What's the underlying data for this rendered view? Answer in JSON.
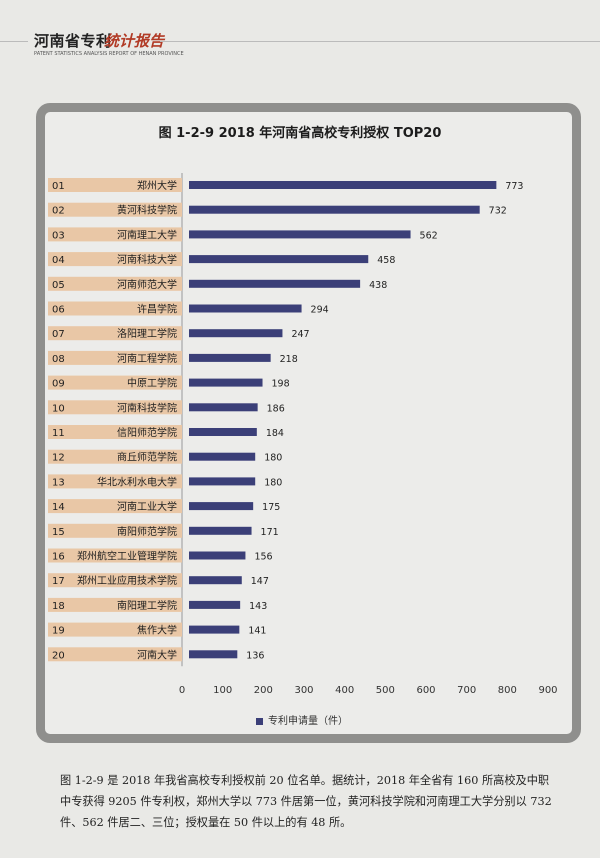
{
  "header": {
    "title": "河南省专利",
    "script": "统计报告",
    "subtitle": "PATENT STATISTICS ANALYSIS REPORT OF HENAN PROVINCE"
  },
  "chart_data": {
    "type": "bar",
    "orientation": "horizontal",
    "title": "图 1-2-9  2018 年河南省高校专利授权 TOP20",
    "ranks": [
      "01",
      "02",
      "03",
      "04",
      "05",
      "06",
      "07",
      "08",
      "09",
      "10",
      "11",
      "12",
      "13",
      "14",
      "15",
      "16",
      "17",
      "18",
      "19",
      "20"
    ],
    "categories": [
      "郑州大学",
      "黄河科技学院",
      "河南理工大学",
      "河南科技大学",
      "河南师范大学",
      "许昌学院",
      "洛阳理工学院",
      "河南工程学院",
      "中原工学院",
      "河南科技学院",
      "信阳师范学院",
      "商丘师范学院",
      "华北水利水电大学",
      "河南工业大学",
      "南阳师范学院",
      "郑州航空工业管理学院",
      "郑州工业应用技术学院",
      "南阳理工学院",
      "焦作大学",
      "河南大学"
    ],
    "values": [
      773,
      732,
      562,
      458,
      438,
      294,
      247,
      218,
      198,
      186,
      184,
      180,
      180,
      175,
      171,
      156,
      147,
      143,
      141,
      136
    ],
    "series_name": "专利申请量（件）",
    "xlim": [
      0,
      900
    ],
    "xticks": [
      0,
      100,
      200,
      300,
      400,
      500,
      600,
      700,
      800,
      900
    ],
    "grid": false,
    "legend_position": "bottom",
    "colors": {
      "bar": "#3b3f78",
      "label_band": "#e9c7a6"
    }
  },
  "caption": "图 1-2-9 是 2018 年我省高校专利授权前 20 位名单。据统计，2018 年全省有 160 所高校及中职中专获得 9205 件专利权，郑州大学以 773 件居第一位，黄河科技学院和河南理工大学分别以 732 件、562 件居二、三位；授权量在 50 件以上的有 48 所。"
}
